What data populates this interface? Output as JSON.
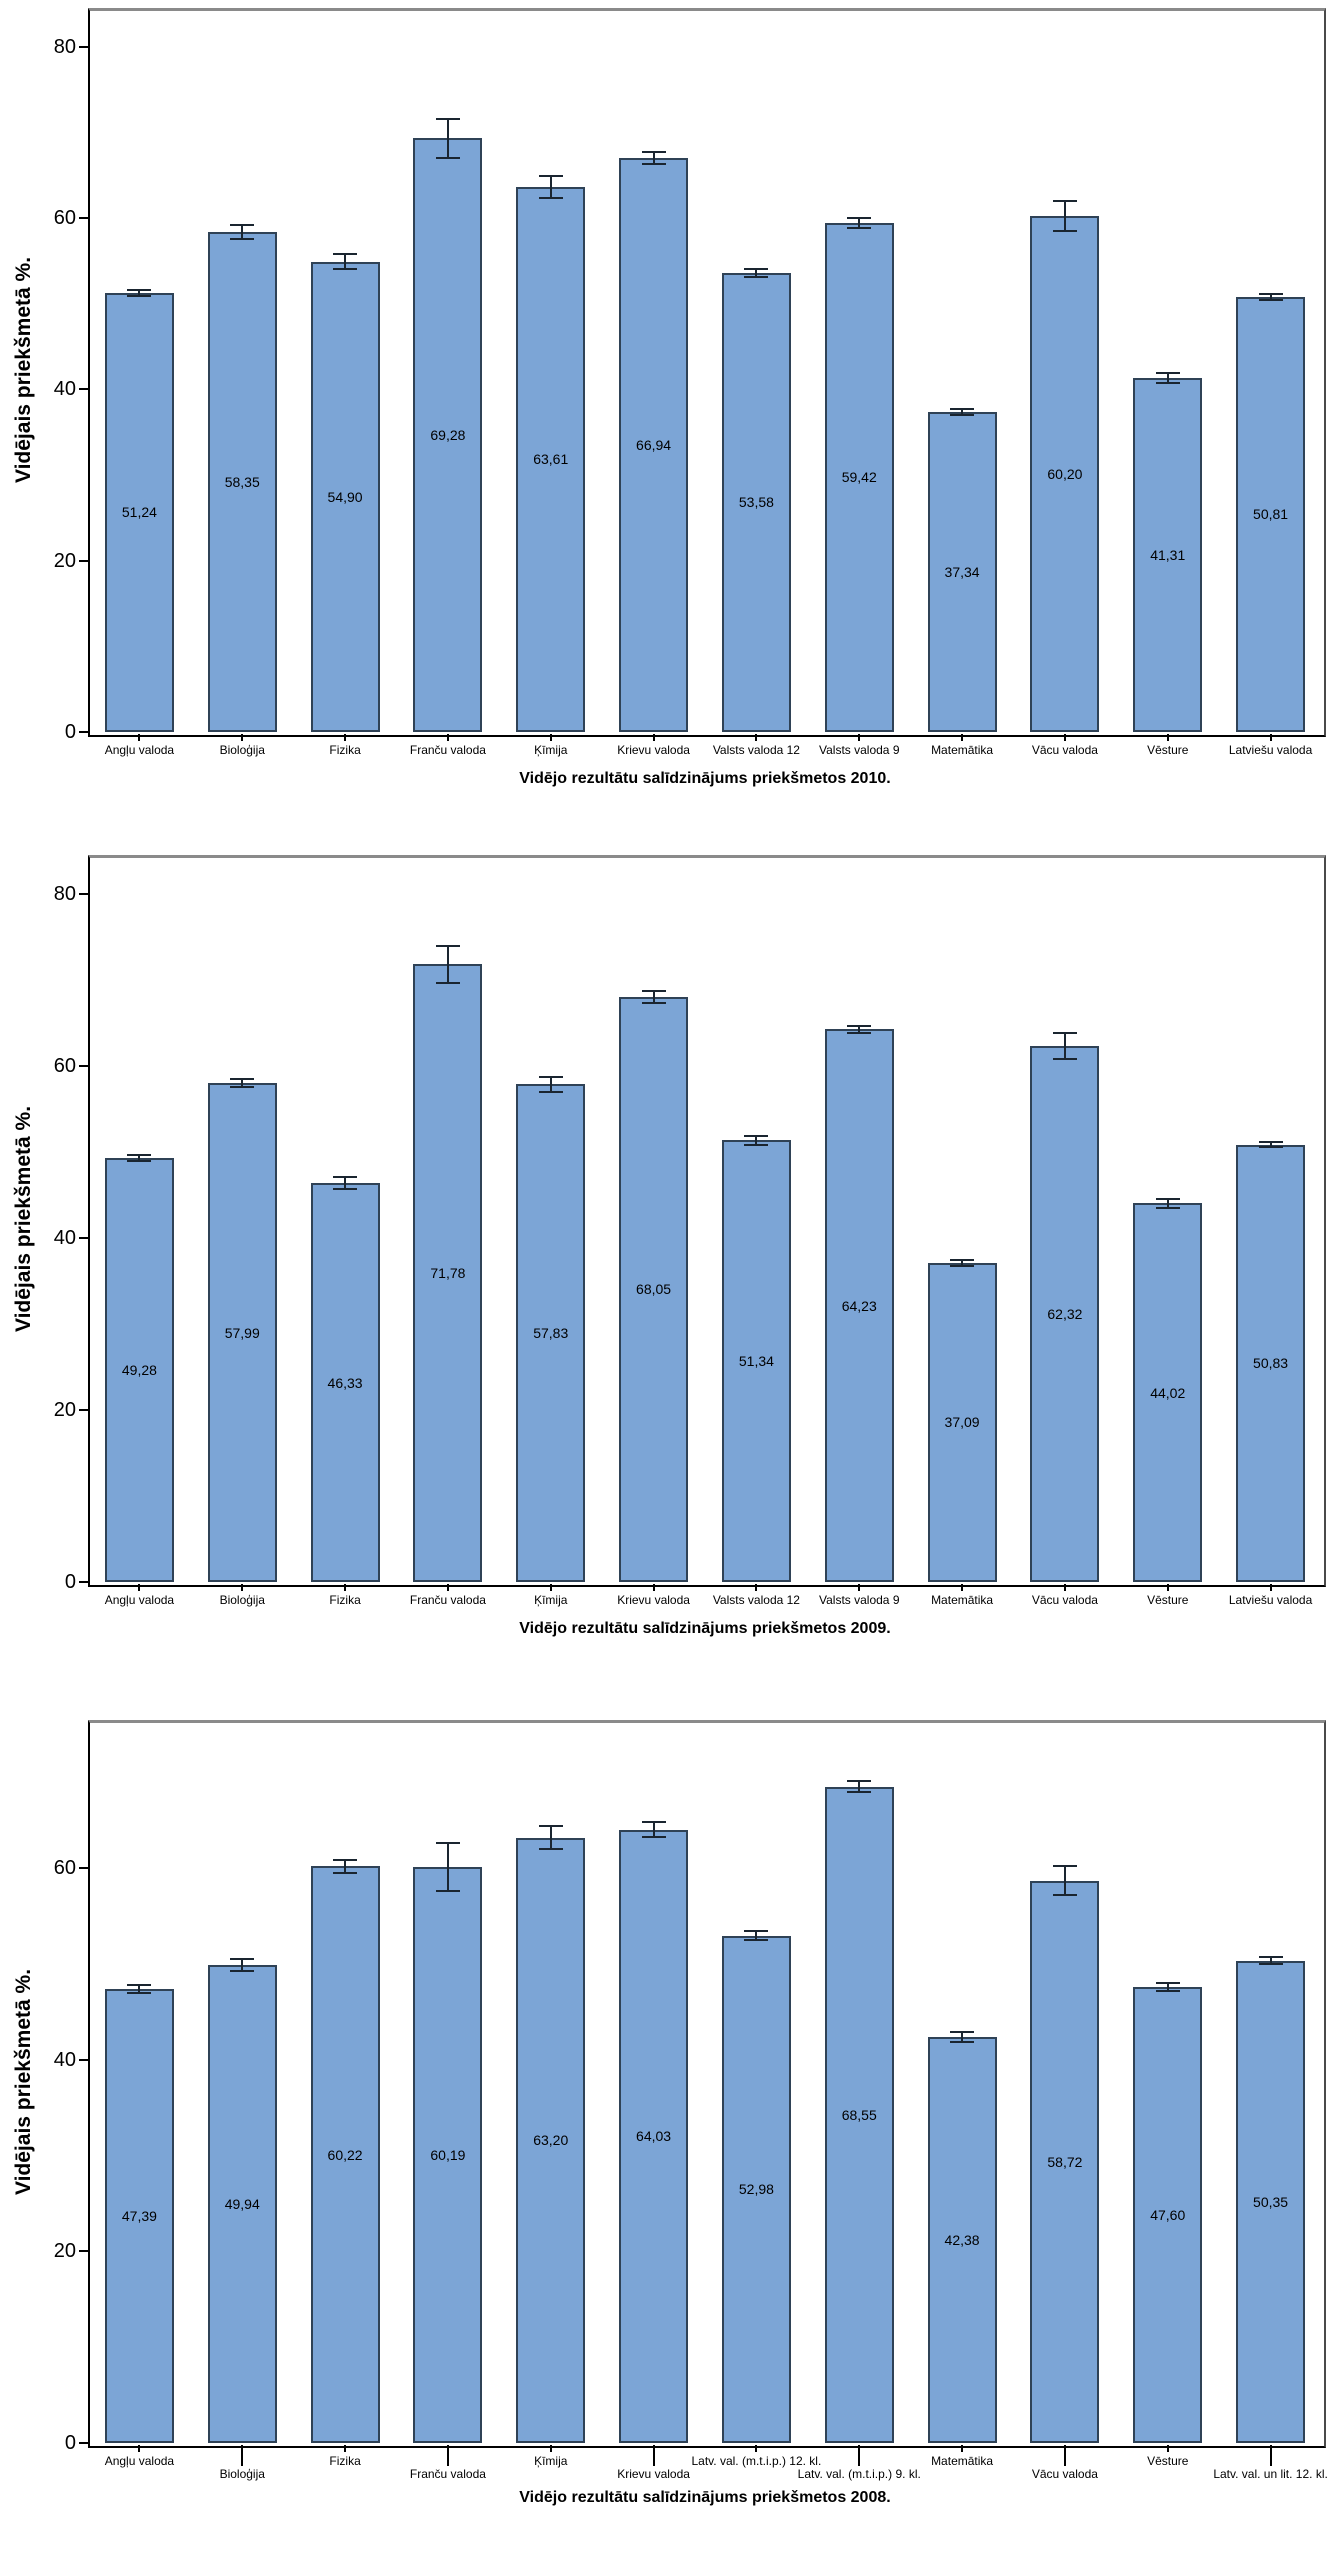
{
  "page": {
    "background": "#ffffff"
  },
  "colors": {
    "bar_fill": "#7CA5D6",
    "bar_border": "#2F4256",
    "error_bar": "#1A2530",
    "frame_top": "#8A8A8A",
    "axis": "#000000",
    "text": "#000000"
  },
  "chart_data": [
    {
      "type": "bar",
      "title": "Vidējo rezultātu salīdzinājums priekšmetos 2010.",
      "ylabel": "Vidējais priekšmetā %.",
      "xlabel": "",
      "grid": false,
      "legend": "none",
      "categories": [
        "Angļu valoda",
        "Bioloģija",
        "Fizika",
        "Franču valoda",
        "Ķīmija",
        "Krievu valoda",
        "Valsts valoda 12",
        "Valsts valoda 9",
        "Matemātika",
        "Vācu valoda",
        "Vēsture",
        "Latviešu valoda"
      ],
      "values": [
        51.24,
        58.35,
        54.9,
        69.28,
        63.61,
        66.94,
        53.58,
        59.42,
        37.34,
        60.2,
        41.31,
        50.81
      ],
      "value_labels": [
        "51,24",
        "58,35",
        "54,90",
        "69,28",
        "63,61",
        "66,94",
        "53,58",
        "59,42",
        "37,34",
        "60,20",
        "41,31",
        "50,81"
      ],
      "errors": [
        0.35,
        0.85,
        0.9,
        2.3,
        1.3,
        0.7,
        0.45,
        0.6,
        0.4,
        1.75,
        0.6,
        0.35
      ],
      "yticks": [
        0,
        20,
        40,
        60,
        80
      ],
      "ytick_labels": [
        "0",
        "20",
        "40",
        "60",
        "80"
      ],
      "ylim": [
        0,
        84.5
      ],
      "label_rows": [
        0,
        0,
        0,
        0,
        0,
        0,
        0,
        0,
        0,
        0,
        0,
        0
      ]
    },
    {
      "type": "bar",
      "title": "Vidējo rezultātu salīdzinājums priekšmetos 2009.",
      "ylabel": "Vidējais priekšmetā %.",
      "xlabel": "",
      "grid": false,
      "legend": "none",
      "categories": [
        "Angļu valoda",
        "Bioloģija",
        "Fizika",
        "Franču valoda",
        "Ķīmija",
        "Krievu valoda",
        "Valsts valoda 12",
        "Valsts valoda 9",
        "Matemātika",
        "Vācu valoda",
        "Vēsture",
        "Latviešu valoda"
      ],
      "values": [
        49.28,
        57.99,
        46.33,
        71.78,
        57.83,
        68.05,
        51.34,
        64.23,
        37.09,
        62.32,
        44.02,
        50.83
      ],
      "value_labels": [
        "49,28",
        "57,99",
        "46,33",
        "71,78",
        "57,83",
        "68,05",
        "51,34",
        "64,23",
        "37,09",
        "62,32",
        "44,02",
        "50,83"
      ],
      "errors": [
        0.4,
        0.5,
        0.7,
        2.2,
        0.9,
        0.7,
        0.5,
        0.45,
        0.35,
        1.5,
        0.5,
        0.3
      ],
      "yticks": [
        0,
        20,
        40,
        60,
        80
      ],
      "ytick_labels": [
        "0",
        "20",
        "40",
        "60",
        "80"
      ],
      "ylim": [
        0,
        84.5
      ],
      "label_rows": [
        0,
        0,
        0,
        0,
        0,
        0,
        0,
        0,
        0,
        0,
        0,
        0
      ]
    },
    {
      "type": "bar",
      "title": "Vidējo rezultātu salīdzinājums priekšmetos 2008.",
      "ylabel": "Vidējais priekšmetā %.",
      "xlabel": "",
      "grid": false,
      "legend": "none",
      "categories": [
        "Angļu valoda",
        "Bioloģija",
        "Fizika",
        "Franču valoda",
        "Ķīmija",
        "Krievu valoda",
        "Latv. val. (m.t.i.p.) 12. kl.",
        "Latv. val. (m.t.i.p.) 9. kl.",
        "Matemātika",
        "Vācu valoda",
        "Vēsture",
        "Latv. val. un lit. 12. kl."
      ],
      "values": [
        47.39,
        49.94,
        60.22,
        60.19,
        63.2,
        64.03,
        52.98,
        68.55,
        42.38,
        58.72,
        47.6,
        50.35
      ],
      "value_labels": [
        "47,39",
        "49,94",
        "60,22",
        "60,19",
        "63,20",
        "64,03",
        "52,98",
        "68,55",
        "42,38",
        "58,72",
        "47,60",
        "50,35"
      ],
      "errors": [
        0.4,
        0.6,
        0.7,
        2.5,
        1.2,
        0.8,
        0.5,
        0.55,
        0.5,
        1.5,
        0.45,
        0.35
      ],
      "yticks": [
        0,
        20,
        40,
        60
      ],
      "ytick_labels": [
        "0",
        "20",
        "40",
        "60"
      ],
      "ylim": [
        0,
        75.5
      ],
      "label_rows": [
        0,
        1,
        0,
        1,
        0,
        1,
        0,
        1,
        0,
        1,
        0,
        1
      ]
    }
  ]
}
